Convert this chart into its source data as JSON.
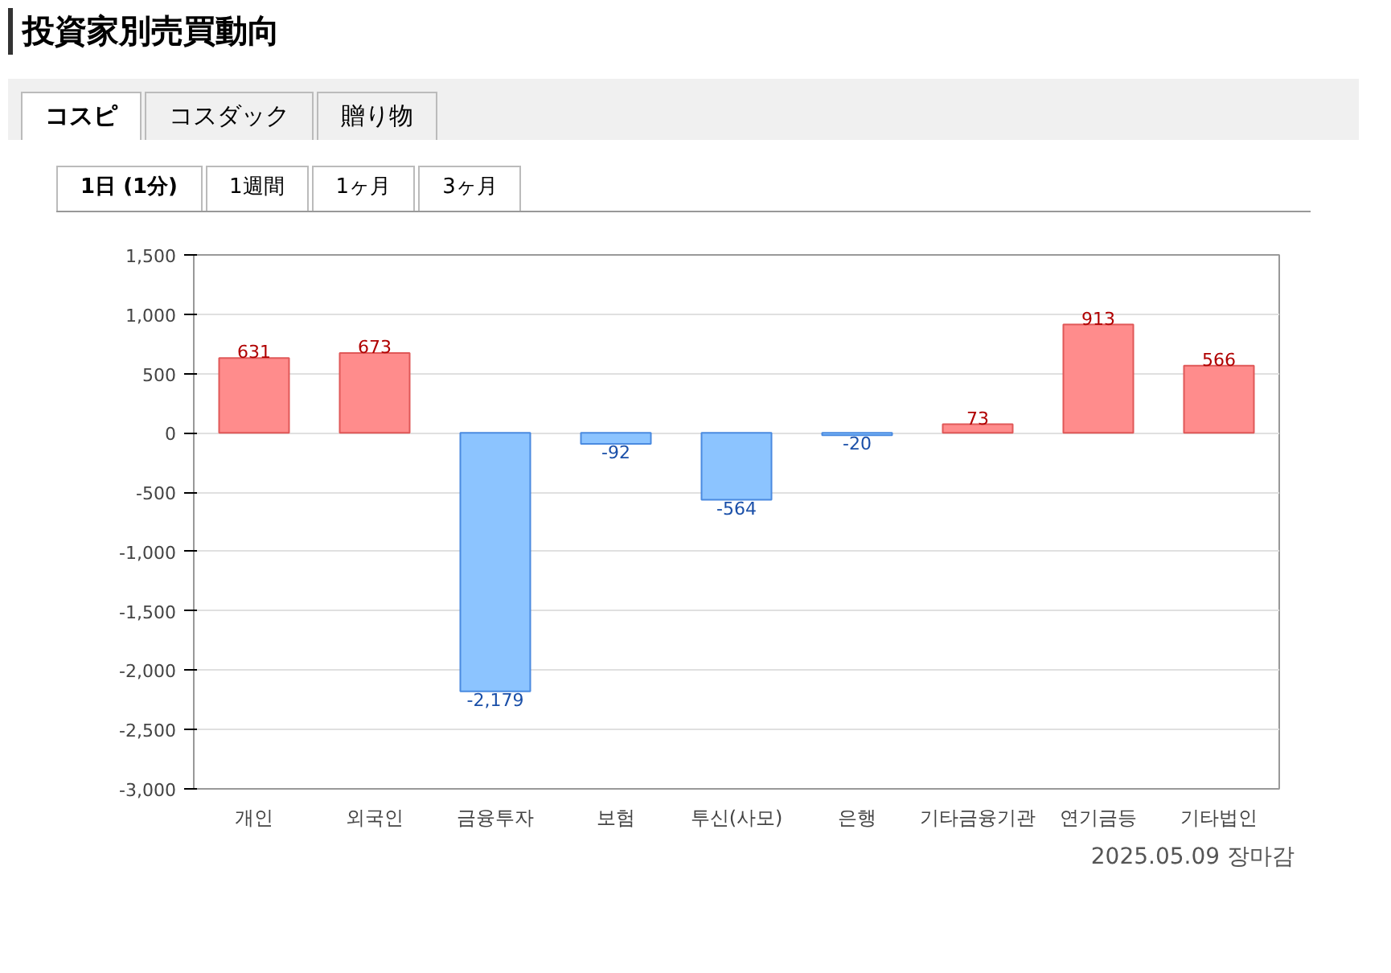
{
  "chart_data": {
    "type": "bar",
    "title": "投資家別売買動向",
    "categories": [
      "개인",
      "외국인",
      "금융투자",
      "보험",
      "투신(사모)",
      "은행",
      "기타금융기관",
      "연기금등",
      "기타법인"
    ],
    "values": [
      631,
      673,
      -2179,
      -92,
      -564,
      -20,
      73,
      913,
      566
    ],
    "colors": [
      "#ff8c8c",
      "#ff8c8c",
      "#8cc4ff",
      "#8cc4ff",
      "#8cc4ff",
      "#8cc4ff",
      "#ff8c8c",
      "#ff8c8c",
      "#ff8c8c"
    ],
    "value_labels": [
      "631",
      "673",
      "-2,179",
      "-92",
      "-564",
      "-20",
      "73",
      "913",
      "566"
    ],
    "ylim": [
      -3000,
      1500
    ],
    "yticks": [
      {
        "value": -3000,
        "label": "-3,000"
      },
      {
        "value": -2500,
        "label": "-2,500"
      },
      {
        "value": -2000,
        "label": "-2,000"
      },
      {
        "value": -1500,
        "label": "-1,500"
      },
      {
        "value": -1000,
        "label": "-1,000"
      },
      -500,
      0,
      500,
      {
        "value": 1000,
        "label": "1,000"
      },
      {
        "value": 1500,
        "label": "1,500"
      }
    ],
    "grid": "y",
    "annotations": [
      "コスピ",
      "コスダック",
      "贈り物",
      "1日 (1分)",
      "1週間",
      "1ヶ月",
      "3ヶ月",
      "2025.05.09 장마감"
    ]
  }
}
